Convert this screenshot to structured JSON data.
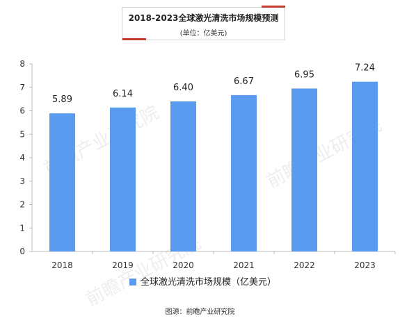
{
  "chart_data": {
    "type": "bar",
    "title": "2018-2023全球激光清洗市场规模预测",
    "subtitle": "(单位：亿美元)",
    "categories": [
      "2018",
      "2019",
      "2020",
      "2021",
      "2022",
      "2023"
    ],
    "series": [
      {
        "name": "全球激光清洗市场规模（亿美元）",
        "values": [
          5.89,
          6.14,
          6.4,
          6.67,
          6.95,
          7.24
        ],
        "labels": [
          "5.89",
          "6.14",
          "6.40",
          "6.67",
          "6.95",
          "7.24"
        ],
        "color": "#5b9bef"
      }
    ],
    "yticks": [
      "0",
      "1",
      "2",
      "3",
      "4",
      "5",
      "6",
      "7",
      "8"
    ],
    "ylim": [
      0,
      8
    ],
    "grid": false,
    "legend_position": "bottom"
  },
  "source": "图源：前瞻产业研究院",
  "watermark_text": "前瞻产业研究院"
}
